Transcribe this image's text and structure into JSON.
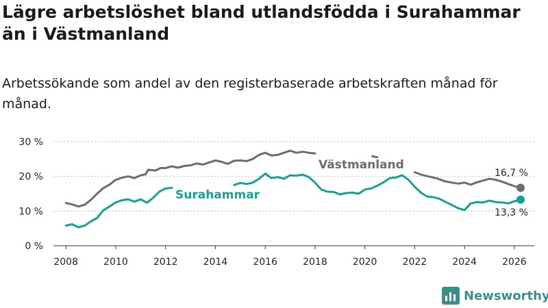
{
  "title": "Lägre arbetslöshet bland utlandsfödda i Surahammar än i Västmanland",
  "subtitle": "Arbetssökande som andel av den registerbaserade arbetskraften månad för månad.",
  "brand": {
    "name": "Newsworthy",
    "color": "#3b8f8a",
    "icon": "bar-chart-logo-icon"
  },
  "chart_data": {
    "type": "line",
    "x_range": [
      2007.5,
      2026.8
    ],
    "ylim": [
      0,
      30
    ],
    "grid": true,
    "x_ticks": [
      {
        "value": 2008,
        "label": "2008"
      },
      {
        "value": 2010,
        "label": "2010"
      },
      {
        "value": 2012,
        "label": "2012"
      },
      {
        "value": 2014,
        "label": "2014"
      },
      {
        "value": 2016,
        "label": "2016"
      },
      {
        "value": 2018,
        "label": "2018"
      },
      {
        "value": 2020,
        "label": "2020"
      },
      {
        "value": 2022,
        "label": "2022"
      },
      {
        "value": 2024,
        "label": "2024"
      },
      {
        "value": 2026,
        "label": "2026"
      }
    ],
    "y_ticks": [
      {
        "value": 0,
        "label": "0 %"
      },
      {
        "value": 10,
        "label": "10 %"
      },
      {
        "value": 20,
        "label": "20 %"
      },
      {
        "value": 30,
        "label": "30 %"
      }
    ],
    "series": [
      {
        "name": "Västmanland",
        "color": "#6b6b70",
        "end_label": "16,7 %",
        "points": [
          [
            2008.0,
            12.3
          ],
          [
            2008.25,
            11.9
          ],
          [
            2008.5,
            11.3
          ],
          [
            2008.75,
            11.8
          ],
          [
            2009.0,
            13.2
          ],
          [
            2009.25,
            15.0
          ],
          [
            2009.5,
            16.6
          ],
          [
            2009.75,
            17.6
          ],
          [
            2010.0,
            19.0
          ],
          [
            2010.25,
            19.6
          ],
          [
            2010.5,
            20.0
          ],
          [
            2010.75,
            19.5
          ],
          [
            2011.0,
            20.3
          ],
          [
            2011.2,
            20.6
          ],
          [
            2011.3,
            21.9
          ],
          [
            2011.6,
            21.7
          ],
          [
            2011.8,
            22.4
          ],
          [
            2012.0,
            22.4
          ],
          [
            2012.25,
            22.9
          ],
          [
            2012.5,
            22.5
          ],
          [
            2012.75,
            23.0
          ],
          [
            2013.0,
            23.2
          ],
          [
            2013.25,
            23.7
          ],
          [
            2013.5,
            23.4
          ],
          [
            2013.75,
            24.0
          ],
          [
            2014.0,
            24.6
          ],
          [
            2014.25,
            24.2
          ],
          [
            2014.5,
            23.6
          ],
          [
            2014.75,
            24.5
          ],
          [
            2015.0,
            24.6
          ],
          [
            2015.25,
            24.4
          ],
          [
            2015.5,
            25.0
          ],
          [
            2015.75,
            26.2
          ],
          [
            2016.0,
            26.8
          ],
          [
            2016.25,
            26.0
          ],
          [
            2016.5,
            26.2
          ],
          [
            2016.75,
            26.8
          ],
          [
            2017.0,
            27.4
          ],
          [
            2017.25,
            26.8
          ],
          [
            2017.5,
            27.1
          ],
          [
            2017.75,
            26.8
          ],
          [
            2018.0,
            26.6
          ]
        ]
      },
      {
        "name": "Västmanland",
        "color": "#6b6b70",
        "points": [
          [
            2020.3,
            25.8
          ],
          [
            2020.5,
            25.5
          ]
        ]
      },
      {
        "name": "Västmanland",
        "color": "#6b6b70",
        "points": [
          [
            2022.0,
            21.2
          ],
          [
            2022.3,
            20.4
          ],
          [
            2022.6,
            19.9
          ],
          [
            2022.9,
            19.4
          ],
          [
            2023.2,
            18.6
          ],
          [
            2023.5,
            18.2
          ],
          [
            2023.75,
            17.9
          ],
          [
            2024.0,
            18.2
          ],
          [
            2024.25,
            17.6
          ],
          [
            2024.5,
            18.3
          ],
          [
            2024.75,
            18.8
          ],
          [
            2025.0,
            19.3
          ],
          [
            2025.25,
            19.0
          ],
          [
            2025.5,
            18.5
          ],
          [
            2025.75,
            17.8
          ],
          [
            2026.0,
            17.2
          ],
          [
            2026.25,
            16.7
          ]
        ]
      },
      {
        "name": "Surahammar",
        "color": "#16a096",
        "end_label": "13,3 %",
        "points": [
          [
            2008.0,
            5.8
          ],
          [
            2008.25,
            6.2
          ],
          [
            2008.5,
            5.3
          ],
          [
            2008.75,
            5.8
          ],
          [
            2009.0,
            7.0
          ],
          [
            2009.25,
            8.0
          ],
          [
            2009.5,
            10.2
          ],
          [
            2009.75,
            11.3
          ],
          [
            2010.0,
            12.5
          ],
          [
            2010.25,
            13.1
          ],
          [
            2010.5,
            13.4
          ],
          [
            2010.75,
            12.7
          ],
          [
            2011.0,
            13.4
          ],
          [
            2011.25,
            12.4
          ],
          [
            2011.5,
            13.8
          ],
          [
            2011.75,
            15.6
          ],
          [
            2012.0,
            16.5
          ],
          [
            2012.25,
            16.7
          ]
        ]
      },
      {
        "name": "Surahammar",
        "color": "#16a096",
        "points": [
          [
            2014.75,
            17.5
          ],
          [
            2015.0,
            18.1
          ],
          [
            2015.25,
            17.8
          ],
          [
            2015.5,
            18.2
          ],
          [
            2015.75,
            19.3
          ],
          [
            2016.0,
            20.8
          ],
          [
            2016.25,
            19.5
          ],
          [
            2016.5,
            19.8
          ],
          [
            2016.75,
            19.3
          ],
          [
            2017.0,
            20.3
          ],
          [
            2017.25,
            20.2
          ],
          [
            2017.5,
            20.5
          ],
          [
            2017.75,
            19.8
          ],
          [
            2018.0,
            18.2
          ],
          [
            2018.25,
            16.2
          ],
          [
            2018.5,
            15.6
          ],
          [
            2018.75,
            15.5
          ],
          [
            2019.0,
            14.8
          ],
          [
            2019.25,
            15.2
          ],
          [
            2019.5,
            15.3
          ],
          [
            2019.75,
            15.0
          ],
          [
            2020.0,
            16.2
          ],
          [
            2020.25,
            16.5
          ],
          [
            2020.5,
            17.3
          ],
          [
            2020.75,
            18.3
          ],
          [
            2021.0,
            19.5
          ],
          [
            2021.25,
            19.7
          ],
          [
            2021.5,
            20.3
          ],
          [
            2021.75,
            19.0
          ],
          [
            2022.0,
            17.0
          ],
          [
            2022.25,
            15.3
          ],
          [
            2022.5,
            14.2
          ],
          [
            2022.75,
            14.0
          ],
          [
            2023.0,
            13.5
          ],
          [
            2023.25,
            12.6
          ],
          [
            2023.5,
            11.7
          ],
          [
            2023.75,
            10.8
          ],
          [
            2024.0,
            10.3
          ],
          [
            2024.25,
            12.2
          ],
          [
            2024.5,
            12.6
          ],
          [
            2024.75,
            12.5
          ],
          [
            2025.0,
            13.0
          ],
          [
            2025.25,
            12.6
          ],
          [
            2025.5,
            12.5
          ],
          [
            2025.75,
            12.2
          ],
          [
            2026.0,
            12.8
          ],
          [
            2026.25,
            13.3
          ]
        ]
      }
    ],
    "series_labels": [
      {
        "text": "Västmanland",
        "color": "#6b6b70"
      },
      {
        "text": "Surahammar",
        "color": "#16a096"
      }
    ]
  }
}
